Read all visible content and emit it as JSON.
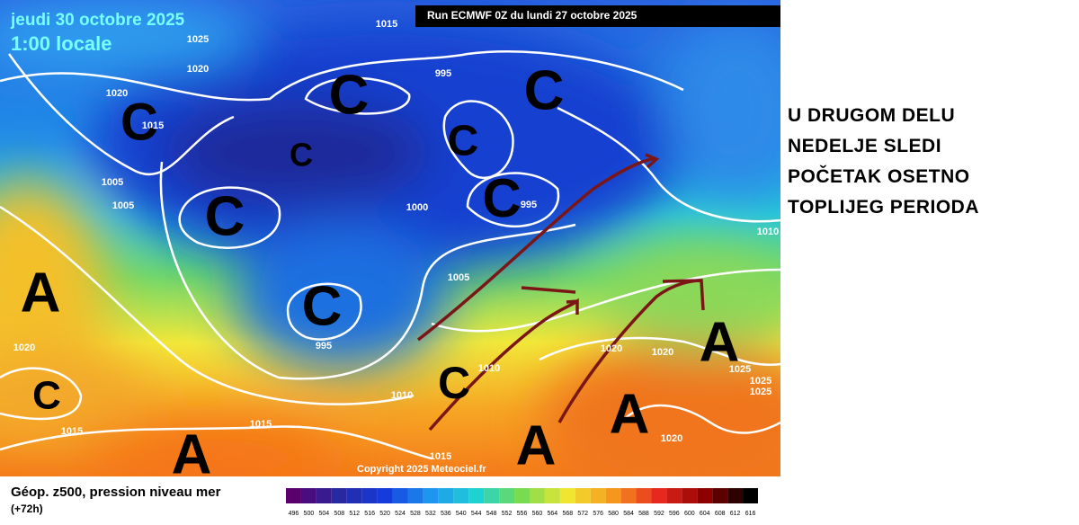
{
  "header": {
    "date": "jeudi 30 octobre 2025",
    "time": "1:00 locale",
    "run": "Run ECMWF 0Z du lundi 27 octobre 2025"
  },
  "copyright": "Copyright 2025 Meteociel.fr",
  "isobar_labels": [
    "1015",
    "1025",
    "1020",
    "1020",
    "1015",
    "995",
    "1005",
    "1005",
    "1000",
    "995",
    "1010",
    "1005",
    "995",
    "1020",
    "1010",
    "1010",
    "1020",
    "1020",
    "1025",
    "1025",
    "1025",
    "1015",
    "1015",
    "1015",
    "1020"
  ],
  "systems": [
    "C",
    "C",
    "C",
    "C",
    "C",
    "C",
    "C",
    "C",
    "C",
    "C",
    "A",
    "A",
    "A",
    "A",
    "A"
  ],
  "legend": {
    "title": "Géop. z500, pression niveau mer",
    "subtitle": "(+72h)",
    "scale": [
      "496",
      "500",
      "504",
      "508",
      "512",
      "516",
      "520",
      "524",
      "528",
      "532",
      "536",
      "540",
      "544",
      "548",
      "552",
      "556",
      "560",
      "564",
      "568",
      "572",
      "576",
      "580",
      "584",
      "588",
      "592",
      "596",
      "600",
      "604",
      "608",
      "612",
      "616"
    ]
  },
  "annotation": [
    "U DRUGOM DELU",
    "NEDELJE SLEDI",
    "POČETAK OSETNO",
    "TOPLIJEG PERIODA"
  ]
}
